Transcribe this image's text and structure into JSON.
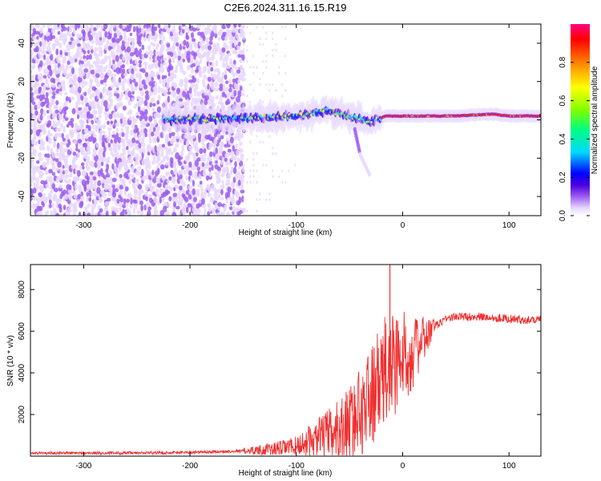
{
  "title": "C2E6.2024.311.16.15.R19",
  "chart_data": [
    {
      "type": "heatmap",
      "xlabel": "Height of straight line (km)",
      "ylabel": "Frequency (Hz)",
      "xlim": [
        -350,
        130
      ],
      "ylim": [
        -50,
        50
      ],
      "xticks": [
        -300,
        -200,
        -100,
        0,
        100
      ],
      "yticks": [
        -40,
        -20,
        0,
        20,
        40
      ],
      "colorbar": {
        "label": "Normalized spectral amplitude",
        "range": [
          0.0,
          1.0
        ],
        "ticks": [
          0.0,
          0.2,
          0.4,
          0.6,
          0.8
        ],
        "colormap": [
          "#ffffff",
          "#e6d6ff",
          "#9b5cf0",
          "#4b00e0",
          "#0000ff",
          "#00d8ff",
          "#00ff80",
          "#80ff00",
          "#ffff00",
          "#ff8000",
          "#ff0000",
          "#ff0080"
        ]
      },
      "features": {
        "noise_region_x": [
          -350,
          -150
        ],
        "sparse_region_x": [
          -150,
          -100
        ],
        "signal_band": [
          {
            "x": -225,
            "freq": 0
          },
          {
            "x": -150,
            "freq": 1
          },
          {
            "x": -100,
            "freq": 2
          },
          {
            "x": -70,
            "freq": 5
          },
          {
            "x": -45,
            "freq": 1
          },
          {
            "x": -30,
            "freq": -1
          },
          {
            "x": -15,
            "freq": 2
          },
          {
            "x": 0,
            "freq": 2
          },
          {
            "x": 50,
            "freq": 2
          },
          {
            "x": 85,
            "freq": 3
          },
          {
            "x": 100,
            "freq": 2
          },
          {
            "x": 130,
            "freq": 2
          }
        ],
        "side_streak": [
          {
            "x": -45,
            "freq": -5
          },
          {
            "x": -40,
            "freq": -18
          },
          {
            "x": -30,
            "freq": -30
          }
        ]
      }
    },
    {
      "type": "line",
      "xlabel": "Height of straight line (km)",
      "ylabel": "SNR (10 * v/v)",
      "xlim": [
        -350,
        130
      ],
      "ylim": [
        0,
        9200
      ],
      "xticks": [
        -300,
        -200,
        -100,
        0,
        100
      ],
      "yticks": [
        2000,
        4000,
        6000,
        8000
      ],
      "color": "#f03030",
      "series": [
        {
          "x": [
            -350,
            -250,
            -180,
            -150,
            -120,
            -100,
            -80,
            -60,
            -50,
            -40,
            -30,
            -20,
            -15,
            -10,
            0,
            10,
            20,
            30,
            40,
            50,
            60,
            70,
            80,
            90,
            100,
            110,
            120,
            130
          ],
          "values": [
            150,
            150,
            200,
            250,
            350,
            500,
            800,
            1200,
            1600,
            2100,
            2900,
            3600,
            4100,
            4500,
            4700,
            5000,
            5600,
            6200,
            6600,
            6700,
            6700,
            6700,
            6650,
            6650,
            6600,
            6550,
            6550,
            6600
          ]
        }
      ],
      "spike": {
        "x": -12,
        "value": 9200
      }
    }
  ]
}
